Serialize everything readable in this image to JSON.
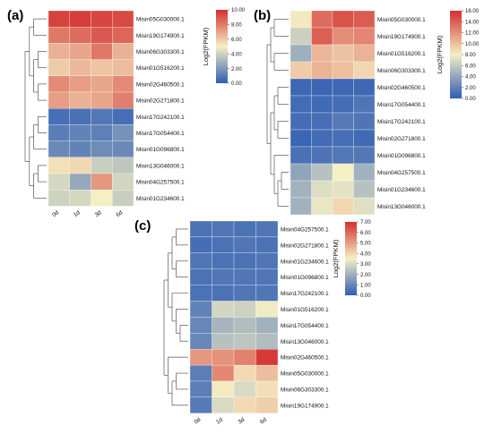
{
  "chart_data": [
    {
      "type": "heatmap",
      "panel_label": "(a)",
      "columns": [
        "0d",
        "1d",
        "3d",
        "6d"
      ],
      "rows": [
        "Misin05G030000.1",
        "Misin19G174900.1",
        "Misin06G303300.1",
        "Misin01G516200.1",
        "Misin02G460500.1",
        "Misin02G271800.1",
        "Misin17G242100.1",
        "Misin17G054400.1",
        "Misin01G096800.1",
        "Misin13G046000.1",
        "Misin04G257500.1",
        "Misin01G234600.1"
      ],
      "values": [
        [
          9.5,
          9.6,
          9.4,
          9.3
        ],
        [
          8.1,
          8.4,
          8.9,
          8.6
        ],
        [
          6.6,
          6.9,
          8.1,
          6.6
        ],
        [
          5.9,
          6.4,
          6.1,
          6.3
        ],
        [
          7.6,
          7.1,
          6.9,
          7.6
        ],
        [
          7.1,
          6.6,
          6.9,
          7.9
        ],
        [
          0.6,
          0.7,
          0.9,
          0.6
        ],
        [
          1.1,
          1.3,
          1.2,
          1.8
        ],
        [
          1.5,
          1.3,
          1.6,
          1.5
        ],
        [
          5.4,
          5.6,
          3.9,
          3.6
        ],
        [
          4.2,
          2.6,
          7.3,
          4.1
        ],
        [
          4.0,
          4.2,
          5.0,
          3.9
        ]
      ],
      "colorbar_label": "Log2(FPKM)",
      "colorbar_range": [
        0,
        10
      ],
      "colorbar_ticks": [
        "10.00",
        "8.00",
        "6.00",
        "4.00",
        "2.00",
        "0.00"
      ],
      "color_scale": [
        "#2f5db3",
        "#f5efc4",
        "#d32f2f"
      ]
    },
    {
      "type": "heatmap",
      "panel_label": "(b)",
      "columns": [],
      "rows": [
        "Misin05G030000.1",
        "Misin19G174900.1",
        "Misin01G516200.1",
        "Misin06G303300.1",
        "Misin02G460500.1",
        "Misin17G054400.1",
        "Misin17G242100.1",
        "Misin02G271800.1",
        "Misin01G096800.1",
        "Misin04G257500.1",
        "Misin01G234600.1",
        "Misin13G046000.1"
      ],
      "values": [
        [
          8.3,
          13.4,
          14.5,
          14.1
        ],
        [
          6.3,
          14.0,
          12.1,
          12.4
        ],
        [
          4.5,
          10.4,
          9.8,
          10.5
        ],
        [
          9.5,
          10.5,
          10.0,
          9.0
        ],
        [
          0.6,
          0.5,
          0.6,
          0.6
        ],
        [
          0.8,
          0.7,
          0.9,
          1.3
        ],
        [
          0.9,
          1.0,
          1.6,
          1.3
        ],
        [
          0.5,
          0.8,
          1.0,
          0.7
        ],
        [
          1.1,
          1.2,
          1.4,
          1.5
        ],
        [
          3.9,
          5.5,
          8.0,
          4.6
        ],
        [
          4.7,
          7.0,
          7.3,
          5.5
        ],
        [
          4.6,
          7.5,
          9.0,
          7.1
        ]
      ],
      "colorbar_label": "Log2(FPKM)",
      "colorbar_range": [
        0,
        16
      ],
      "colorbar_ticks": [
        "16.00",
        "14.00",
        "12.00",
        "10.00",
        "8.00",
        "6.00",
        "4.00",
        "2.00",
        "0.00"
      ],
      "color_scale": [
        "#2f5db3",
        "#f5efc4",
        "#d32f2f"
      ]
    },
    {
      "type": "heatmap",
      "panel_label": "(c)",
      "columns": [
        "0d",
        "1d",
        "3d",
        "6d"
      ],
      "rows": [
        "Misin04G257500.1",
        "Misin02G271800.1",
        "Misin01G234600.1",
        "Misin01G096800.1",
        "Misin17G242100.1",
        "Misin01G516200.1",
        "Misin17G054400.1",
        "Misin13G046000.1",
        "Misin02G460500.1",
        "Misin05G030000.1",
        "Misin06G303300.1",
        "Misin19G174900.1"
      ],
      "values": [
        [
          0.5,
          0.6,
          0.5,
          0.6
        ],
        [
          0.4,
          0.5,
          0.6,
          0.5
        ],
        [
          0.6,
          0.5,
          0.5,
          0.6
        ],
        [
          0.5,
          0.6,
          0.6,
          0.6
        ],
        [
          0.5,
          0.5,
          0.6,
          0.6
        ],
        [
          0.9,
          2.9,
          2.8,
          3.4
        ],
        [
          1.0,
          2.1,
          2.3,
          2.0
        ],
        [
          1.0,
          2.4,
          2.5,
          2.3
        ],
        [
          5.1,
          5.2,
          5.5,
          6.8
        ],
        [
          0.8,
          5.4,
          3.9,
          4.4
        ],
        [
          0.8,
          3.6,
          3.0,
          3.8
        ],
        [
          0.7,
          3.0,
          3.9,
          4.1
        ]
      ],
      "colorbar_label": "Log2(FPKM)",
      "colorbar_range": [
        0,
        7
      ],
      "colorbar_ticks": [
        "7.00",
        "6.00",
        "5.00",
        "4.00",
        "3.00",
        "2.00",
        "1.00",
        "0.00"
      ],
      "color_scale": [
        "#2f5db3",
        "#f5efc4",
        "#d32f2f"
      ]
    }
  ]
}
